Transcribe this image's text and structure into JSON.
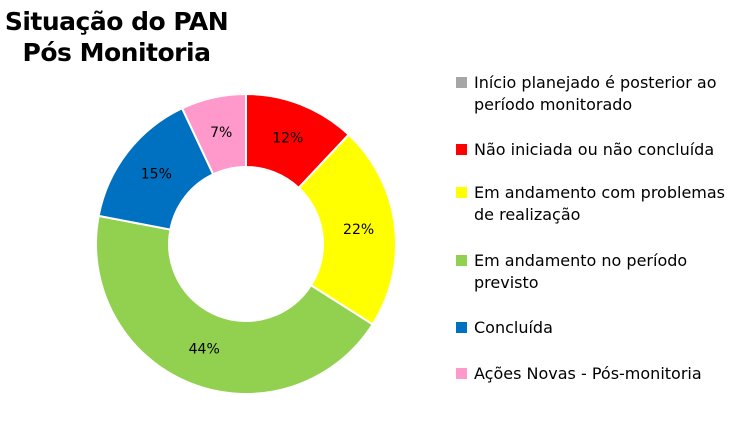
{
  "title_lines": [
    "Situação do PAN",
    "Pós Monitoria"
  ],
  "chart_data": {
    "type": "pie",
    "variant": "donut",
    "title": "Situação do PAN Pós Monitoria",
    "legend_position": "right",
    "slices": [
      {
        "label": "Início planejado é posterior ao período monitorado",
        "value": 0,
        "data_label": "",
        "color": "#a6a6a6"
      },
      {
        "label": "Não iniciada ou não concluída",
        "value": 12,
        "data_label": "12%",
        "color": "#ff0000"
      },
      {
        "label": "Em andamento com problemas de realização",
        "value": 22,
        "data_label": "22%",
        "color": "#ffff00"
      },
      {
        "label": "Em andamento no período previsto",
        "value": 44,
        "data_label": "44%",
        "color": "#92d050"
      },
      {
        "label": "Concluída",
        "value": 15,
        "data_label": "15%",
        "color": "#0070c0"
      },
      {
        "label": "Ações Novas - Pós-monitoria",
        "value": 7,
        "data_label": "7%",
        "color": "#ff99cc"
      }
    ]
  }
}
